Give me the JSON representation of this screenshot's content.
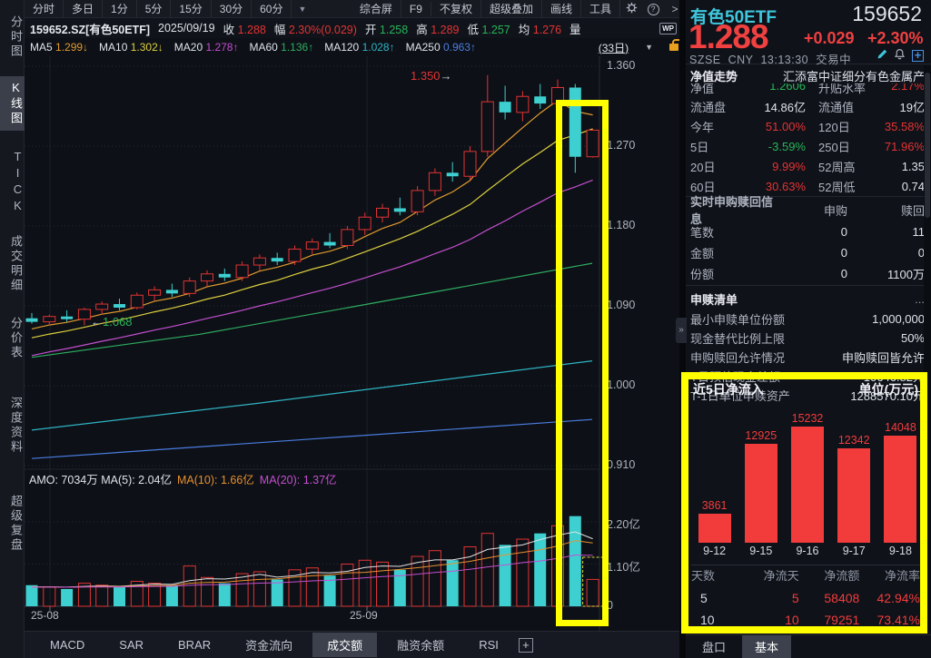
{
  "toolbar": {
    "period_tabs": [
      "分时",
      "多日",
      "1分",
      "5分",
      "15分",
      "30分",
      "60分"
    ],
    "caret": "▼",
    "right_items": [
      "综合屏",
      "F9",
      "不复权",
      "超级叠加",
      "画线",
      "工具"
    ],
    "help": "?",
    "chevron": ">"
  },
  "quote_bar": {
    "symbol": "159652.SZ[有色50ETF]",
    "date": "2025/09/19",
    "close_label": "收",
    "close": "1.288",
    "range_label": "幅",
    "range": "2.30%(0.029)",
    "open_label": "开",
    "open": "1.258",
    "high_label": "高",
    "high": "1.289",
    "low_label": "低",
    "low": "1.257",
    "avg_label": "均",
    "avg": "1.276",
    "vol_label": "量",
    "wp_badge": "WP"
  },
  "ma_bar": {
    "items": [
      {
        "label": "MA5",
        "value": "1.299",
        "dir": "↓",
        "color": "#e09a2e"
      },
      {
        "label": "MA10",
        "value": "1.302",
        "dir": "↓",
        "color": "#ddd040"
      },
      {
        "label": "MA20",
        "value": "1.278",
        "dir": "↑",
        "color": "#c44fd0"
      },
      {
        "label": "MA60",
        "value": "1.136",
        "dir": "↑",
        "color": "#2fae62"
      },
      {
        "label": "MA120",
        "value": "1.028",
        "dir": "↑",
        "color": "#2fb3c4"
      },
      {
        "label": "MA250",
        "value": "0.963",
        "dir": "↑",
        "color": "#4a7de0"
      }
    ],
    "period": "(33日)",
    "caret": "▼"
  },
  "sidebar": {
    "items": [
      "分时图",
      "K线图",
      "TICK",
      "成交明细",
      "分价表",
      "深度资料",
      "超级复盘"
    ],
    "active_index": 1
  },
  "chart": {
    "price_ticks": [
      "1.360",
      "1.270",
      "1.180",
      "1.090",
      "1.000",
      "0.910"
    ],
    "vol_ticks": [
      "2.20亿",
      "1.10亿",
      "0"
    ],
    "x_labels": [
      "25-08",
      "25-09"
    ],
    "annotations": {
      "high": "1.350",
      "high_arrow": "→",
      "low": "1.068",
      "low_arrow": "←"
    },
    "amo_segments": [
      {
        "text": "AMO: 7034万  MA(5): 2.04亿",
        "color": "#dfe3ea"
      },
      {
        "text": "MA(10): 1.66亿",
        "color": "#e89030"
      },
      {
        "text": "MA(20): 1.37亿",
        "color": "#c44fd0"
      }
    ],
    "up_color": "#e23434",
    "down_color": "#3ed0d0",
    "candles": [
      [
        1.076,
        1.082,
        1.07,
        1.072,
        0.55
      ],
      [
        1.072,
        1.08,
        1.068,
        1.078,
        0.5
      ],
      [
        1.078,
        1.085,
        1.072,
        1.075,
        0.45
      ],
      [
        1.075,
        1.088,
        1.068,
        1.086,
        0.6
      ],
      [
        1.086,
        1.095,
        1.08,
        1.092,
        0.55
      ],
      [
        1.092,
        1.098,
        1.085,
        1.088,
        0.5
      ],
      [
        1.088,
        1.105,
        1.086,
        1.102,
        0.65
      ],
      [
        1.102,
        1.112,
        1.096,
        1.108,
        0.6
      ],
      [
        1.108,
        1.115,
        1.1,
        1.104,
        0.55
      ],
      [
        1.104,
        1.122,
        1.1,
        1.118,
        1.05
      ],
      [
        1.118,
        1.13,
        1.112,
        1.126,
        0.75
      ],
      [
        1.126,
        1.132,
        1.118,
        1.122,
        0.6
      ],
      [
        1.122,
        1.14,
        1.118,
        1.136,
        0.85
      ],
      [
        1.136,
        1.148,
        1.13,
        1.144,
        0.9
      ],
      [
        1.144,
        1.15,
        1.136,
        1.14,
        0.7
      ],
      [
        1.14,
        1.158,
        1.136,
        1.154,
        0.95
      ],
      [
        1.154,
        1.166,
        1.148,
        1.162,
        1.0
      ],
      [
        1.162,
        1.172,
        1.155,
        1.158,
        0.8
      ],
      [
        1.158,
        1.18,
        1.154,
        1.176,
        1.1
      ],
      [
        1.176,
        1.195,
        1.17,
        1.19,
        1.2
      ],
      [
        1.19,
        1.205,
        1.184,
        1.2,
        1.15
      ],
      [
        1.2,
        1.212,
        1.192,
        1.196,
        0.95
      ],
      [
        1.196,
        1.225,
        1.192,
        1.22,
        1.3
      ],
      [
        1.22,
        1.245,
        1.214,
        1.24,
        1.45
      ],
      [
        1.24,
        1.252,
        1.23,
        1.236,
        1.2
      ],
      [
        1.236,
        1.27,
        1.232,
        1.264,
        1.55
      ],
      [
        1.264,
        1.35,
        1.258,
        1.32,
        1.9
      ],
      [
        1.32,
        1.338,
        1.3,
        1.308,
        1.6
      ],
      [
        1.308,
        1.332,
        1.298,
        1.326,
        1.75
      ],
      [
        1.326,
        1.34,
        1.312,
        1.318,
        1.9
      ],
      [
        1.318,
        1.345,
        1.31,
        1.336,
        2.1
      ],
      [
        1.336,
        1.34,
        1.24,
        1.258,
        2.35
      ],
      [
        1.258,
        1.289,
        1.257,
        1.288,
        0.7
      ]
    ],
    "ma60_points": [
      [
        0,
        1.032
      ],
      [
        0.3,
        1.058
      ],
      [
        0.6,
        1.092
      ],
      [
        1,
        1.138
      ]
    ],
    "ma120_points": [
      [
        0,
        0.95
      ],
      [
        0.4,
        0.98
      ],
      [
        0.7,
        1.004
      ],
      [
        1,
        1.028
      ]
    ],
    "ma250_points": [
      [
        0,
        0.918
      ],
      [
        0.5,
        0.94
      ],
      [
        1,
        0.962
      ]
    ]
  },
  "bottom_tabs": {
    "items": [
      "MACD",
      "SAR",
      "BRAR",
      "资金流向",
      "成交额",
      "融资余额",
      "RSI"
    ],
    "active_index": 4,
    "plus": "+"
  },
  "right_panel": {
    "name_cn": "有色50ETF",
    "code": "159652",
    "price": "1.288",
    "change": "+0.029",
    "change_pct": "+2.30%",
    "exchange": "SZSE",
    "currency": "CNY",
    "time": "13:13:30",
    "status": "交易中",
    "nav_label": "净值走势",
    "fund_name": "汇添富中证细分有色金属产",
    "clipped_row": {
      "l1": "净值",
      "v1": "1.2606",
      "l2": "升贴水率",
      "v2": "2.17%"
    },
    "stat_rows": [
      {
        "l1": "流通盘",
        "v1": "14.86亿",
        "c1": "white",
        "l2": "流通值",
        "v2": "19亿",
        "c2": "white"
      },
      {
        "l1": "今年",
        "v1": "51.00%",
        "c1": "red",
        "l2": "120日",
        "v2": "35.58%",
        "c2": "red"
      },
      {
        "l1": "5日",
        "v1": "-3.59%",
        "c1": "green",
        "l2": "250日",
        "v2": "71.96%",
        "c2": "red"
      },
      {
        "l1": "20日",
        "v1": "9.99%",
        "c1": "red",
        "l2": "52周高",
        "v2": "1.35",
        "c2": "white"
      },
      {
        "l1": "60日",
        "v1": "30.63%",
        "c1": "red",
        "l2": "52周低",
        "v2": "0.74",
        "c2": "white"
      }
    ],
    "subscribe_section": {
      "title": "实时申购赎回信息",
      "col1": "申购",
      "col2": "赎回",
      "rows": [
        {
          "label": "笔数",
          "v1": "0",
          "v2": "11"
        },
        {
          "label": "金额",
          "v1": "0",
          "v2": "0"
        },
        {
          "label": "份额",
          "v1": "0",
          "v2": "1100万"
        }
      ]
    },
    "redeem_section": {
      "title": "申赎清单",
      "more": "...",
      "rows": [
        {
          "label": "最小申赎单位份额",
          "value": "1,000,000"
        },
        {
          "label": "现金替代比例上限",
          "value": "50%"
        },
        {
          "label": "申购赎回允许情况",
          "value": "申购赎回皆允许"
        },
        {
          "label": "T日预估现金差额",
          "value": "-10646.82元"
        },
        {
          "label": "T-1日单位申赎资产",
          "value": "1288570.10元"
        }
      ]
    },
    "flow_section": {
      "title": "近5日净流入",
      "unit": "单位(万元)",
      "chart_data": {
        "type": "bar",
        "categories": [
          "9-12",
          "9-15",
          "9-16",
          "9-17",
          "9-18"
        ],
        "values": [
          3861,
          12925,
          15232,
          12342,
          14048
        ],
        "bar_color": "#f23c3c",
        "ylabel": "万元"
      },
      "table": {
        "headers": [
          "天数",
          "净流天",
          "净流额",
          "净流率"
        ],
        "rows": [
          [
            "5",
            "5",
            "58408",
            "42.94%"
          ],
          [
            "10",
            "10",
            "79251",
            "73.41%"
          ]
        ]
      }
    },
    "tabs": {
      "items": [
        "盘口",
        "基本"
      ],
      "active_index": 1
    }
  }
}
